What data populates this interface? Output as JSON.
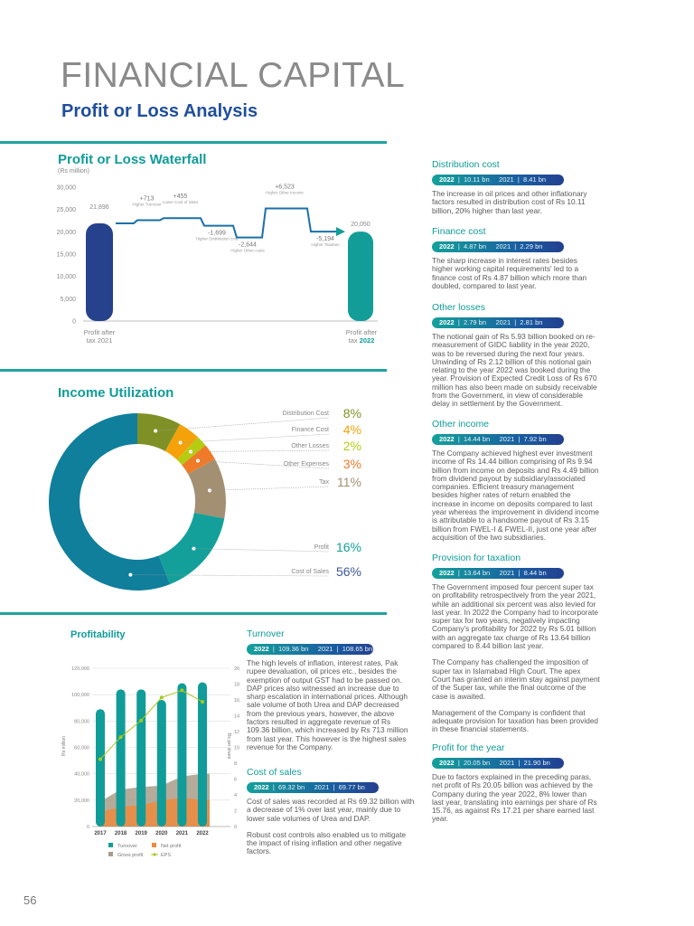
{
  "header": {
    "title": "FINANCIAL CAPITAL",
    "subtitle": "Profit or Loss Analysis"
  },
  "page_number": "56",
  "colors": {
    "teal": "#0f9c98",
    "navy": "#23408f",
    "accent_blue": "#1f4e9c"
  },
  "waterfall": {
    "title": "Profit or Loss Waterfall",
    "unit": "(Rs million)",
    "start_label_1": "Profit after",
    "start_label_2": "tax 2021",
    "end_label_1": "Profit after",
    "end_label_2": "tax ",
    "end_year": "2022"
  },
  "donut": {
    "title": "Income Utilization"
  },
  "profitability": {
    "title": "Profitability",
    "ylabel": "Rs million",
    "y2label": "Rs per share"
  },
  "chart_data": [
    {
      "type": "bar",
      "title": "Profit or Loss Waterfall",
      "ylabel": "(Rs million)",
      "ylim": [
        0,
        30000
      ],
      "yticks": [
        "0",
        "5,000",
        "10,000",
        "15,000",
        "20,000",
        "25,000",
        "30,000"
      ],
      "start": {
        "label": "Profit after tax 2021",
        "value": 21896,
        "display": "21,896"
      },
      "steps": [
        {
          "value": 713,
          "display": "+713",
          "label": "Higher Turnover"
        },
        {
          "value": 455,
          "display": "+455",
          "label": "Lower Cost of sales"
        },
        {
          "value": -1699,
          "display": "-1,699",
          "label": "Higher Distribution cost"
        },
        {
          "value": -2644,
          "display": "-2,644",
          "label": "Higher Other costs"
        },
        {
          "value": 6523,
          "display": "+6,523",
          "label": "Higher Other Income"
        },
        {
          "value": -5194,
          "display": "-5,194",
          "label": "Higher Taxation"
        }
      ],
      "end": {
        "label": "Profit after tax 2022",
        "value": 20050,
        "display": "20,050"
      }
    },
    {
      "type": "pie",
      "title": "Income Utilization",
      "slices": [
        {
          "label": "Distribution Cost",
          "value": 8,
          "display": "8%",
          "color": "#7f9126"
        },
        {
          "label": "Finance Cost",
          "value": 4,
          "display": "4%",
          "color": "#f5a20a"
        },
        {
          "label": "Other Losses",
          "value": 2,
          "display": "2%",
          "color": "#b5cc12"
        },
        {
          "label": "Other Expenses",
          "value": 3,
          "display": "3%",
          "color": "#ef7a28"
        },
        {
          "label": "Tax",
          "value": 11,
          "display": "11%",
          "color": "#a38f72"
        },
        {
          "label": "Profit",
          "value": 16,
          "display": "16%",
          "color": "#13a09a"
        },
        {
          "label": "Cost of Sales",
          "value": 56,
          "display": "56%",
          "color": "#0f7f9c"
        }
      ]
    },
    {
      "type": "bar",
      "title": "Profitability",
      "categories": [
        "2017",
        "2018",
        "2019",
        "2020",
        "2021",
        "2022"
      ],
      "ylabel": "Rs million",
      "ylim": [
        0,
        120000
      ],
      "yticks": [
        "0",
        "20,000",
        "40,000",
        "60,000",
        "80,000",
        "100,000",
        "120,000"
      ],
      "y2label": "Rs per share",
      "y2lim": [
        0,
        20
      ],
      "y2ticks": [
        "0",
        "2",
        "4",
        "6",
        "8",
        "10",
        "12",
        "14",
        "16",
        "18",
        "20"
      ],
      "series": [
        {
          "name": "Turnover",
          "kind": "bar",
          "color": "#109c98",
          "values": [
            89000,
            104000,
            104000,
            96000,
            108650,
            109360
          ]
        },
        {
          "name": "Gross profit",
          "kind": "area",
          "color": "#a89c88",
          "values": [
            19000,
            28000,
            30000,
            31000,
            38000,
            40000
          ]
        },
        {
          "name": "Net profit",
          "kind": "area",
          "color": "#ef8a3c",
          "values": [
            11000,
            15000,
            16000,
            20000,
            21900,
            20050
          ]
        },
        {
          "name": "EPS",
          "kind": "line",
          "axis": "right",
          "color": "#a8c81c",
          "values": [
            8.5,
            11.3,
            13.4,
            16.3,
            17.21,
            15.76
          ]
        }
      ]
    }
  ],
  "sections": {
    "distribution": {
      "title": "Distribution cost",
      "y1": "2022",
      "v1": "10.11 bn",
      "y2": "2021",
      "v2": "8.41 bn",
      "text": [
        "The increase in oil prices and other inflationary factors resulted in distribution cost of Rs 10.11 billion, 20% higher than last year."
      ]
    },
    "finance": {
      "title": "Finance cost",
      "y1": "2022",
      "v1": "4.87 bn",
      "y2": "2021",
      "v2": "2.29 bn",
      "text": [
        "The sharp increase in interest rates besides higher working capital requirements' led to a  finance cost of Rs 4.87 billion which more than doubled, compared to last year."
      ]
    },
    "losses": {
      "title": "Other losses",
      "y1": "2022",
      "v1": "2.79 bn",
      "y2": "2021",
      "v2": "2.81 bn",
      "text": [
        "The notional gain of Rs 5.93 billion booked on re-measurement of GIDC liability in the year 2020, was to be reversed during the next four years. Unwinding of Rs 2.12 billion of this notional gain relating to the year 2022 was booked during the year. Provision of Expected Credit Loss of Rs 670 million has also been made on subsidy receivable from the Government, in view of considerable delay in settlement by the Government."
      ]
    },
    "income": {
      "title": "Other income",
      "y1": "2022",
      "v1": "14.44 bn",
      "y2": "2021",
      "v2": "7.92 bn",
      "text": [
        "The Company achieved highest ever investment income of Rs 14.44 billion comprising of Rs 9.94 billion from income on deposits and Rs 4.49 billion from dividend payout by subsidiary/associated companies. Efficient treasury management besides higher rates of return enabled the increase in income on deposits compared to last year whereas the improvement in dividend income is attributable to a handsome payout of Rs 3.15 billion from FWEL-I & FWEL-II, just one year after acquisition of the two subsidiaries."
      ]
    },
    "taxation": {
      "title": "Provision for taxation",
      "y1": "2022",
      "v1": "13.64 bn",
      "y2": "2021",
      "v2": "8.44 bn",
      "text": [
        "The Government imposed four percent super tax on profitability retrospectively from the year 2021, while an additional six percent was also levied for last year. In 2022 the Company had to incorporate super tax for two years, negatively impacting Company's profitability for 2022 by Rs 5.01 billion with an aggregate tax charge of Rs 13.64 billion compared to 8.44 billion last year.",
        "The Company has challenged the imposition of super tax in Islamabad High Court. The apex Court has granted an interim stay against payment of the Super tax, while the final outcome of the case is awaited.",
        "Management of the Company is confident that adequate provision for taxation has been provided in these financial statements."
      ]
    },
    "profit": {
      "title": "Profit for the year",
      "y1": "2022",
      "v1": "20.05 bn",
      "y2": "2021",
      "v2": "21.90 bn",
      "text": [
        "Due to factors explained in the preceding paras, net profit of Rs 20.05 billion was achieved by the Company during the year 2022, 8% lower than last year, translating into earnings per share of Rs 15.76, as against Rs 17.21 per share earned last year."
      ]
    },
    "turnover": {
      "title": "Turnover",
      "y1": "2022",
      "v1": "109.36 bn",
      "y2": "2021",
      "v2": "108.65 bn",
      "text": [
        "The high levels of inflation, interest rates, Pak rupee devaluation, oil prices etc., besides the exemption of output GST had to be passed on. DAP prices also witnessed an increase due to sharp escalation in international prices. Although sale volume of both Urea and DAP decreased from the previous years, however, the above factors resulted in aggregate revenue of Rs 109.36 billion, which increased by Rs 713 million from last year. This however is the highest sales revenue for the Company."
      ]
    },
    "cos": {
      "title": "Cost of sales",
      "y1": "2022",
      "v1": "69.32 bn",
      "y2": "2021",
      "v2": "69.77 bn",
      "text": [
        "Cost of sales was recorded at Rs 69.32 billion with a decrease of 1% over last year, mainly due to lower sale volumes of Urea and DAP.",
        "Robust cost controls also enabled us to mitigate the impact of rising inflation and other negative factors."
      ]
    }
  }
}
